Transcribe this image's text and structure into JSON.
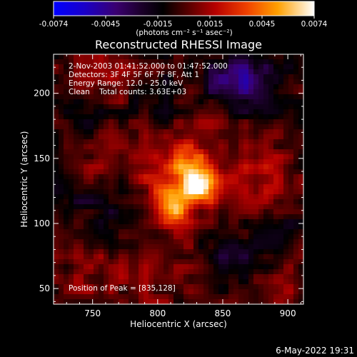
{
  "chart_data": {
    "type": "heatmap",
    "title": "Reconstructed RHESSI Image",
    "xlabel": "Heliocentric X (arcsec)",
    "ylabel": "Heliocentric Y (arcsec)",
    "xlim": [
      720,
      912
    ],
    "ylim": [
      38,
      230
    ],
    "x_ticks": [
      750,
      800,
      850,
      900
    ],
    "y_ticks": [
      50,
      100,
      150,
      200
    ],
    "colorbar": {
      "range": [
        -0.0074,
        0.0074
      ],
      "ticks": [
        "-0.0074",
        "-0.0045",
        "-0.0015",
        "0.0015",
        "0.0045",
        "0.0074"
      ],
      "unit_label": "(photons cm⁻² s⁻¹ asec⁻²)"
    },
    "annotations": [
      "2-Nov-2003 01:41:52.000 to 01:47:52.000",
      "Detectors: 3F 4F 5F 6F 7F 8F, Att 1",
      "Energy Range: 12.0 - 25.0 keV",
      "Clean    Total counts: 3.63E+03",
      "Position of Peak = [835,128]"
    ],
    "sources": [
      {
        "x": 833,
        "y": 130,
        "value": 0.0074
      },
      {
        "x": 812,
        "y": 115,
        "value": 0.0062
      },
      {
        "x": 822,
        "y": 148,
        "value": 0.0035
      },
      {
        "x": 795,
        "y": 140,
        "value": 0.0022
      },
      {
        "x": 758,
        "y": 203,
        "value": 0.0013
      },
      {
        "x": 878,
        "y": 140,
        "value": 0.0014
      },
      {
        "x": 880,
        "y": 110,
        "value": 0.001
      },
      {
        "x": 800,
        "y": 70,
        "value": 0.001
      },
      {
        "x": 750,
        "y": 150,
        "value": 0.001
      },
      {
        "x": 835,
        "y": 178,
        "value": 0.001
      },
      {
        "x": 752,
        "y": 62,
        "value": 0.0008
      },
      {
        "x": 895,
        "y": 52,
        "value": 0.0008
      },
      {
        "x": 770,
        "y": 112,
        "value": -0.002
      },
      {
        "x": 880,
        "y": 210,
        "value": -0.0022
      },
      {
        "x": 745,
        "y": 178,
        "value": -0.0018
      },
      {
        "x": 860,
        "y": 72,
        "value": -0.002
      },
      {
        "x": 800,
        "y": 195,
        "value": -0.0016
      },
      {
        "x": 895,
        "y": 95,
        "value": -0.0018
      },
      {
        "x": 730,
        "y": 120,
        "value": -0.0012
      },
      {
        "x": 855,
        "y": 208,
        "value": -0.003
      }
    ]
  },
  "footer": {
    "timestamp": "6-May-2022 19:31"
  }
}
